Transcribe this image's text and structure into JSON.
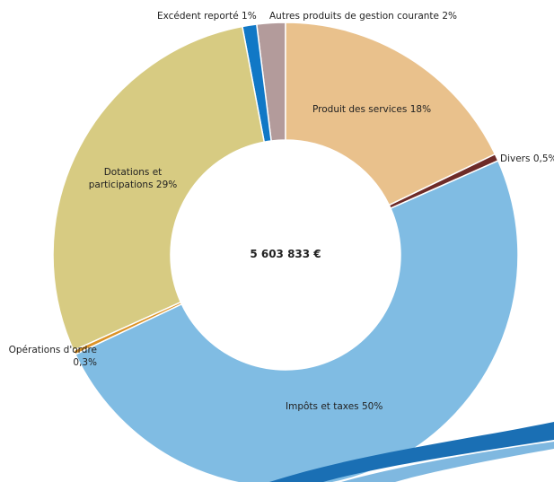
{
  "chart_data": {
    "type": "donut",
    "categories": [
      "Produit des services",
      "Divers",
      "Impôts et taxes",
      "Opérations d'ordre",
      "Dotations et participations",
      "Excédent reporté",
      "Autres produits de gestion courante"
    ],
    "values": [
      18,
      0.5,
      50,
      0.3,
      29,
      1,
      2
    ],
    "value_labels": [
      "18%",
      "0,5%",
      "50%",
      "0,3%",
      "29%",
      "1%",
      "2%"
    ],
    "colors": [
      "#e9c18c",
      "#6e2b28",
      "#80bce3",
      "#dc9327",
      "#d7cb82",
      "#1178c6",
      "#b39b9b"
    ],
    "center_label": "5 603 833 €"
  }
}
